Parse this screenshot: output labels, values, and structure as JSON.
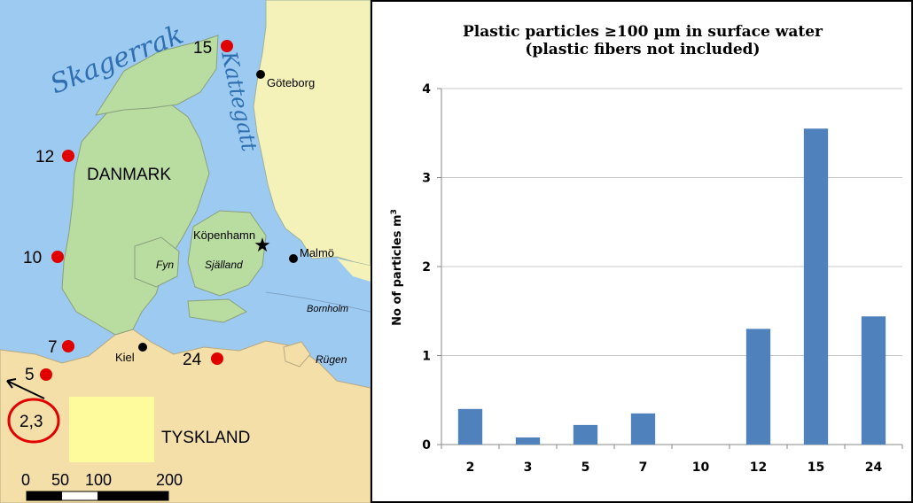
{
  "map": {
    "sea_labels": {
      "skagerrak": "Skagerrak",
      "kattegatt": "Kattegatt"
    },
    "country_labels": {
      "denmark": "DANMARK",
      "germany": "TYSKLAND"
    },
    "cities": [
      {
        "key": "goteborg",
        "label": "Göteborg"
      },
      {
        "key": "kobenhavn",
        "label": "Köpenhamn"
      },
      {
        "key": "malmo",
        "label": "Malmö"
      },
      {
        "key": "kiel",
        "label": "Kiel"
      }
    ],
    "islands": [
      {
        "key": "fyn",
        "label": "Fyn"
      },
      {
        "key": "sjalland",
        "label": "Själland"
      },
      {
        "key": "bornholm",
        "label": "Bornholm"
      },
      {
        "key": "rugen",
        "label": "Rügen"
      }
    ],
    "stations": [
      "15",
      "12",
      "10",
      "7",
      "5",
      "24",
      "2,3"
    ],
    "scale_labels": [
      "0",
      "50",
      "100",
      "200"
    ],
    "colors": {
      "sea": "#9ccaf0",
      "denmark": "#b9dca0",
      "germany": "#f4dfa8",
      "sweden": "#f4f2b8",
      "station": "#e00000"
    }
  },
  "chart_data": {
    "type": "bar",
    "title": "Plastic particles ≥100 µm in surface water",
    "subtitle": "(plastic fibers not included)",
    "ylabel": "No of particles m",
    "ylabel_superscript": "3",
    "xlabel": "",
    "categories": [
      "2",
      "3",
      "5",
      "7",
      "10",
      "12",
      "15",
      "24"
    ],
    "values": [
      0.4,
      0.08,
      0.22,
      0.35,
      0,
      1.3,
      3.55,
      1.44
    ],
    "yticks": [
      0,
      1,
      2,
      3,
      4
    ],
    "ylim": [
      0,
      4
    ],
    "grid": true,
    "bar_color": "#4f81bd",
    "legend": "none"
  }
}
